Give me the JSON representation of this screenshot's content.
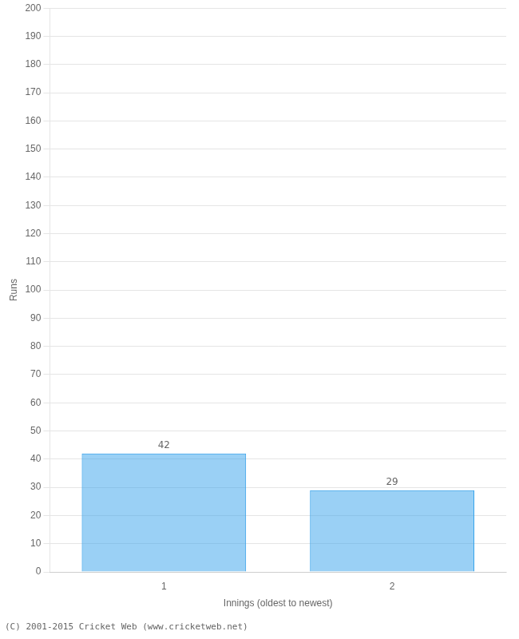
{
  "chart_data": {
    "type": "bar",
    "categories": [
      "1",
      "2"
    ],
    "values": [
      42,
      29
    ],
    "xlabel": "Innings (oldest to newest)",
    "ylabel": "Runs",
    "ylim": [
      0,
      200
    ],
    "yticks": [
      0,
      10,
      20,
      30,
      40,
      50,
      60,
      70,
      80,
      90,
      100,
      110,
      120,
      130,
      140,
      150,
      160,
      170,
      180,
      190,
      200
    ],
    "grid": true,
    "data_labels": true,
    "annotations": [
      "(C) 2001-2015 Cricket Web (www.cricketweb.net)"
    ]
  }
}
